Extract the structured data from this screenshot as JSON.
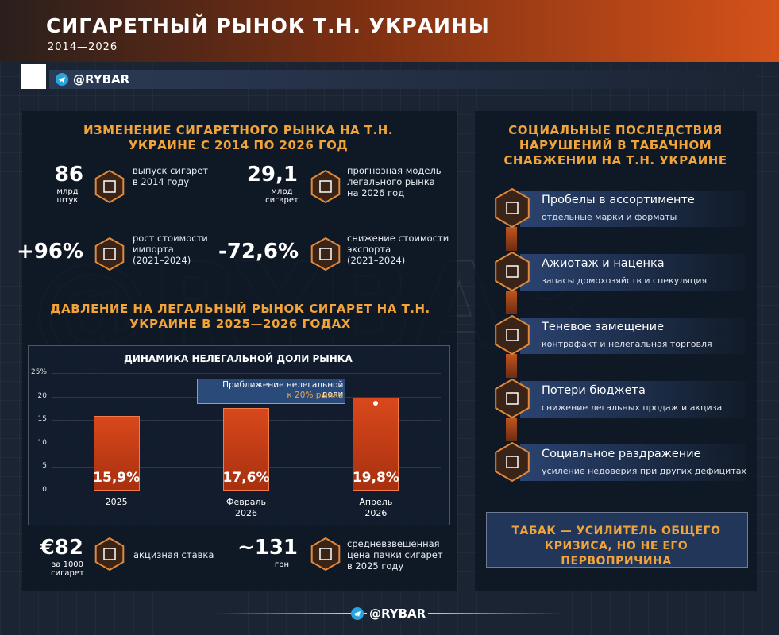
{
  "header": {
    "title": "СИГАРЕТНЫЙ РЫНОК Т.Н. УКРАИНЫ",
    "subtitle": "2014—2026",
    "brand": "@RYBAR"
  },
  "left": {
    "section1_title": "ИЗМЕНЕНИЕ СИГАРЕТНОГО РЫНКА НА Т.Н. УКРАИНЕ С 2014 ПО 2026 ГОД",
    "stats": [
      {
        "value": "86",
        "unit": "млрд штук",
        "label": "выпуск сигарет",
        "note": "в 2014 году"
      },
      {
        "value": "29,1",
        "unit": "млрд сигарет",
        "label": "прогнозная модель легального рынка",
        "note": "на 2026 год"
      },
      {
        "value": "+96%",
        "label": "рост стоимости импорта",
        "note": "(2021–2024)"
      },
      {
        "value": "-72,6%",
        "label": "снижение стоимости экспорта",
        "note": "(2021–2024)"
      }
    ],
    "section2_title": "ДАВЛЕНИЕ НА ЛЕГАЛЬНЫЙ РЫНОК СИГАРЕТ НА Т.Н. УКРАИНЕ В 2025—2026 ГОДАХ",
    "bottom_stats": [
      {
        "value": "€82",
        "unit": "за 1000 сигарет",
        "label": "акцизная ставка"
      },
      {
        "value": "~131",
        "unit": "грн",
        "label": "средневзвешенная цена пачки сигарет в 2025 году"
      }
    ]
  },
  "chart_data": {
    "type": "bar",
    "title": "ДИНАМИКА НЕЛЕГАЛЬНОЙ ДОЛИ РЫНКА",
    "categories": [
      "2025",
      "Февраль 2026",
      "Апрель 2026"
    ],
    "values": [
      15.9,
      17.6,
      19.8
    ],
    "value_labels": [
      "15,9%",
      "17,6%",
      "19,8%"
    ],
    "color": "#d9481c",
    "ylim": [
      0,
      25
    ],
    "yticks": [
      0,
      5,
      10,
      15,
      20,
      {
        "value": 25,
        "label": "25%"
      }
    ],
    "annotation": {
      "text": "Приближение нелегальной доли",
      "highlight": "к 20% рынка"
    }
  },
  "right": {
    "title": "СОЦИАЛЬНЫЕ ПОСЛЕДСТВИЯ НАРУШЕНИЙ В ТАБАЧНОМ СНАБЖЕНИИ НА Т.Н. УКРАИНЕ",
    "items": [
      {
        "title": "Пробелы в ассортименте",
        "subtitle": "отдельные марки и форматы"
      },
      {
        "title": "Ажиотаж и наценка",
        "subtitle": "запасы домохозяйств и спекуляция"
      },
      {
        "title": "Теневое замещение",
        "subtitle": "контрафакт и нелегальная торговля"
      },
      {
        "title": "Потери бюджета",
        "subtitle": "снижение легальных продаж и акциза"
      },
      {
        "title": "Социальное раздражение",
        "subtitle": "усиление недоверия при других дефицитах"
      }
    ],
    "conclusion": "ТАБАК — УСИЛИТЕЛЬ ОБЩЕГО КРИЗИСА, НО НЕ ЕГО ПЕРВОПРИЧИНА"
  }
}
